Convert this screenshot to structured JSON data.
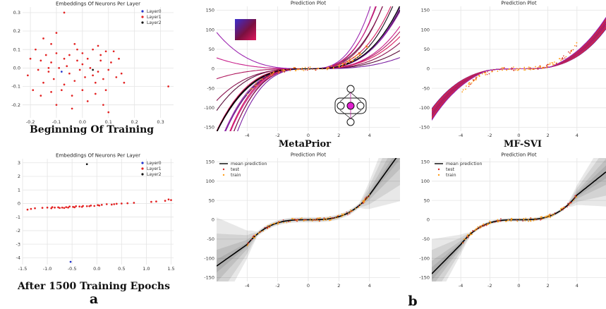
{
  "captions": {
    "left_top": "Beginning Of Training",
    "left_bottom": "After 1500 Training Epochs",
    "mid_top": "MetaPrior",
    "right_top": "MF-SVI",
    "letter_a": "a",
    "letter_b": "b"
  },
  "colors": {
    "layer0": "#2233cc",
    "layer1": "#e32222",
    "layer2": "#111111",
    "test": "#d62728",
    "train": "#ff9f1c",
    "mean": "#000000",
    "grid": "#e4e4e4",
    "function_lines": [
      "#1a0a1a",
      "#5a0f3a",
      "#8a1450",
      "#b0185e",
      "#c81e8a",
      "#9c27b0",
      "#7b1fa2",
      "#d81b60"
    ],
    "mf_lines": [
      "#7a1f8a",
      "#c2185b",
      "#e53935",
      "#ad1457",
      "#9c27b0",
      "#b71c1c",
      "#d81b60"
    ]
  },
  "chart_data": [
    {
      "id": "emb_start",
      "type": "scatter",
      "title": "Embeddings Of Neurons Per Layer",
      "xlim": [
        -0.23,
        0.35
      ],
      "ylim": [
        -0.27,
        0.33
      ],
      "xticks": [
        "-0.2",
        "-0.1",
        "0.0",
        "0.1",
        "0.2",
        "0.3"
      ],
      "xtick_values": [
        -0.2,
        -0.1,
        0.0,
        0.1,
        0.2,
        0.3
      ],
      "yticks": [
        "-0.2",
        "-0.1",
        "0.0",
        "0.1",
        "0.2",
        "0.3"
      ],
      "ytick_values": [
        -0.2,
        -0.1,
        0.0,
        0.1,
        0.2,
        0.3
      ],
      "legend_position": "top-right",
      "series": [
        {
          "name": "Layer0",
          "color_key": "layer0",
          "points": [
            [
              -0.08,
              -0.02
            ]
          ]
        },
        {
          "name": "Layer1",
          "color_key": "layer1",
          "points": [
            [
              -0.07,
              0.3
            ],
            [
              -0.1,
              0.19
            ],
            [
              -0.15,
              0.16
            ],
            [
              -0.12,
              0.13
            ],
            [
              -0.03,
              0.13
            ],
            [
              0.06,
              0.12
            ],
            [
              0.09,
              0.09
            ],
            [
              -0.18,
              0.1
            ],
            [
              -0.14,
              0.07
            ],
            [
              -0.1,
              0.08
            ],
            [
              -0.05,
              0.07
            ],
            [
              0.0,
              0.08
            ],
            [
              0.04,
              0.1
            ],
            [
              0.12,
              0.09
            ],
            [
              -0.2,
              0.05
            ],
            [
              -0.16,
              0.04
            ],
            [
              -0.12,
              0.03
            ],
            [
              -0.07,
              0.05
            ],
            [
              -0.02,
              0.04
            ],
            [
              0.02,
              0.05
            ],
            [
              0.07,
              0.04
            ],
            [
              0.11,
              0.03
            ],
            [
              0.14,
              0.05
            ],
            [
              -0.21,
              -0.04
            ],
            [
              -0.17,
              -0.01
            ],
            [
              -0.13,
              -0.02
            ],
            [
              -0.09,
              0.0
            ],
            [
              -0.05,
              -0.03
            ],
            [
              -0.01,
              -0.01
            ],
            [
              0.03,
              0.0
            ],
            [
              0.06,
              -0.02
            ],
            [
              0.1,
              -0.01
            ],
            [
              0.15,
              -0.03
            ],
            [
              -0.19,
              -0.12
            ],
            [
              -0.15,
              -0.08
            ],
            [
              -0.11,
              -0.06
            ],
            [
              -0.07,
              -0.09
            ],
            [
              -0.03,
              -0.07
            ],
            [
              0.01,
              -0.05
            ],
            [
              0.05,
              -0.08
            ],
            [
              0.08,
              -0.06
            ],
            [
              0.13,
              -0.05
            ],
            [
              -0.16,
              -0.15
            ],
            [
              -0.12,
              -0.13
            ],
            [
              -0.08,
              -0.12
            ],
            [
              -0.04,
              -0.15
            ],
            [
              0.0,
              -0.12
            ],
            [
              0.05,
              -0.14
            ],
            [
              0.09,
              -0.12
            ],
            [
              -0.1,
              -0.2
            ],
            [
              -0.04,
              -0.22
            ],
            [
              0.02,
              -0.18
            ],
            [
              0.08,
              -0.2
            ],
            [
              0.1,
              -0.24
            ],
            [
              0.33,
              -0.1
            ],
            [
              -0.06,
              0.01
            ],
            [
              0.0,
              0.02
            ],
            [
              0.04,
              -0.04
            ],
            [
              -0.02,
              0.1
            ],
            [
              0.16,
              -0.08
            ],
            [
              -0.13,
              0.0
            ],
            [
              0.07,
              0.07
            ]
          ]
        },
        {
          "name": "Layer2",
          "color_key": "layer2",
          "points": [
            [
              0.04,
              -0.01
            ]
          ]
        }
      ]
    },
    {
      "id": "emb_end",
      "type": "scatter",
      "title": "Embeddings Of Neurons Per Layer",
      "xlim": [
        -1.5,
        1.55
      ],
      "ylim": [
        -4.5,
        3.3
      ],
      "xticks": [
        "-1.5",
        "-1.0",
        "-0.5",
        "0.0",
        "0.5",
        "1.0",
        "1.5"
      ],
      "xtick_values": [
        -1.5,
        -1.0,
        -0.5,
        0.0,
        0.5,
        1.0,
        1.5
      ],
      "yticks": [
        "-4",
        "-3",
        "-2",
        "-1",
        "0",
        "1",
        "2",
        "3"
      ],
      "ytick_values": [
        -4,
        -3,
        -2,
        -1,
        0,
        1,
        2,
        3
      ],
      "legend_position": "top-right",
      "series": [
        {
          "name": "Layer0",
          "color_key": "layer0",
          "points": [
            [
              -0.53,
              -4.3
            ]
          ]
        },
        {
          "name": "Layer1",
          "color_key": "layer1",
          "points": [
            [
              -1.4,
              -0.45
            ],
            [
              -1.33,
              -0.4
            ],
            [
              -1.25,
              -0.35
            ],
            [
              -1.1,
              -0.32
            ],
            [
              -1.0,
              -0.3
            ],
            [
              -0.92,
              -0.35
            ],
            [
              -0.85,
              -0.3
            ],
            [
              -0.78,
              -0.28
            ],
            [
              -0.7,
              -0.3
            ],
            [
              -0.62,
              -0.27
            ],
            [
              -0.55,
              -0.22
            ],
            [
              -0.48,
              -0.25
            ],
            [
              -0.42,
              -0.2
            ],
            [
              -0.35,
              -0.22
            ],
            [
              -0.28,
              -0.18
            ],
            [
              -0.2,
              -0.2
            ],
            [
              -0.12,
              -0.15
            ],
            [
              -0.05,
              -0.18
            ],
            [
              0.02,
              -0.12
            ],
            [
              0.1,
              -0.1
            ],
            [
              0.2,
              -0.05
            ],
            [
              0.3,
              -0.08
            ],
            [
              0.4,
              -0.02
            ],
            [
              0.5,
              0.0
            ],
            [
              0.62,
              0.02
            ],
            [
              0.75,
              0.05
            ],
            [
              1.1,
              0.12
            ],
            [
              1.2,
              0.15
            ],
            [
              1.38,
              0.2
            ],
            [
              1.45,
              0.3
            ],
            [
              1.5,
              0.25
            ],
            [
              -0.66,
              -0.33
            ],
            [
              -0.58,
              -0.3
            ],
            [
              -0.45,
              -0.28
            ],
            [
              -0.3,
              -0.25
            ],
            [
              -0.15,
              -0.2
            ],
            [
              0.05,
              -0.15
            ],
            [
              0.35,
              -0.05
            ],
            [
              -0.9,
              -0.27
            ],
            [
              -0.75,
              -0.33
            ]
          ]
        },
        {
          "name": "Layer2",
          "color_key": "layer2",
          "points": [
            [
              -0.2,
              2.9
            ]
          ]
        }
      ]
    },
    {
      "id": "metaprior_functions",
      "type": "line",
      "title": "Prediction Plot",
      "xlim": [
        -6,
        6
      ],
      "ylim": [
        -160,
        160
      ],
      "xticks": [
        "-4",
        "-2",
        "0",
        "2",
        "4"
      ],
      "xtick_values": [
        -4,
        -2,
        0,
        2,
        4
      ],
      "yticks": [
        "-150",
        "-100",
        "-50",
        "0",
        "50",
        "100",
        "150"
      ],
      "ytick_values": [
        -150,
        -100,
        -50,
        0,
        50,
        100,
        150
      ],
      "function_scales": [
        1.0,
        0.3,
        0.45,
        0.6,
        0.75,
        0.9,
        1.1,
        1.3,
        1.5,
        1.7,
        2.0,
        2.4,
        2.8,
        3.3,
        0.2,
        0.5
      ],
      "function_offsets": [
        0,
        -0.3,
        0.2,
        -0.5,
        0.4,
        -0.8,
        0.6,
        -1.0,
        0.9,
        -1.3,
        0.0,
        -0.6,
        0.3,
        -0.2,
        0.5,
        -0.9
      ],
      "train_range": [
        -4,
        4
      ]
    },
    {
      "id": "mfsvi_functions",
      "type": "line",
      "title": "Prediction Plot",
      "xlim": [
        -6,
        6
      ],
      "ylim": [
        -160,
        160
      ],
      "xticks": [
        "-4",
        "-2",
        "0",
        "2",
        "4"
      ],
      "xtick_values": [
        -4,
        -2,
        0,
        2,
        4
      ],
      "yticks": [
        "-150",
        "-100",
        "-50",
        "0",
        "50",
        "100",
        "150"
      ],
      "ytick_values": [
        -150,
        -100,
        -50,
        0,
        50,
        100,
        150
      ],
      "function_scales": [
        0.7,
        0.75,
        0.8,
        0.85,
        0.9,
        0.95,
        1.0,
        1.05,
        1.1,
        1.15,
        1.2,
        1.25
      ],
      "train_range": [
        -4,
        4
      ]
    },
    {
      "id": "metaprior_predictive",
      "type": "line",
      "title": "Prediction Plot",
      "xlim": [
        -6,
        6
      ],
      "ylim": [
        -160,
        160
      ],
      "xticks": [
        "-4",
        "-2",
        "0",
        "2",
        "4"
      ],
      "xtick_values": [
        -4,
        -2,
        0,
        2,
        4
      ],
      "yticks": [
        "-150",
        "-100",
        "-50",
        "0",
        "50",
        "100",
        "150"
      ],
      "ytick_values": [
        -150,
        -100,
        -50,
        0,
        50,
        100,
        150
      ],
      "legend_position": "top-left",
      "legend": [
        "mean prediction",
        "test",
        "train"
      ],
      "band_widths": [
        6,
        15,
        30,
        45
      ],
      "train_range": [
        -4,
        4
      ]
    },
    {
      "id": "mfsvi_predictive",
      "type": "line",
      "title": "Prediction Plot",
      "xlim": [
        -6,
        6
      ],
      "ylim": [
        -160,
        160
      ],
      "xticks": [
        "-4",
        "-2",
        "0",
        "2",
        "4"
      ],
      "xtick_values": [
        -4,
        -2,
        0,
        2,
        4
      ],
      "yticks": [
        "-150",
        "-100",
        "-50",
        "0",
        "50",
        "100",
        "150"
      ],
      "ytick_values": [
        -150,
        -100,
        -50,
        0,
        50,
        100,
        150
      ],
      "legend_position": "top-left",
      "legend": [
        "mean prediction",
        "test",
        "train"
      ],
      "band_widths": [
        6,
        12,
        22,
        32
      ],
      "train_range": [
        -4,
        4
      ]
    }
  ]
}
